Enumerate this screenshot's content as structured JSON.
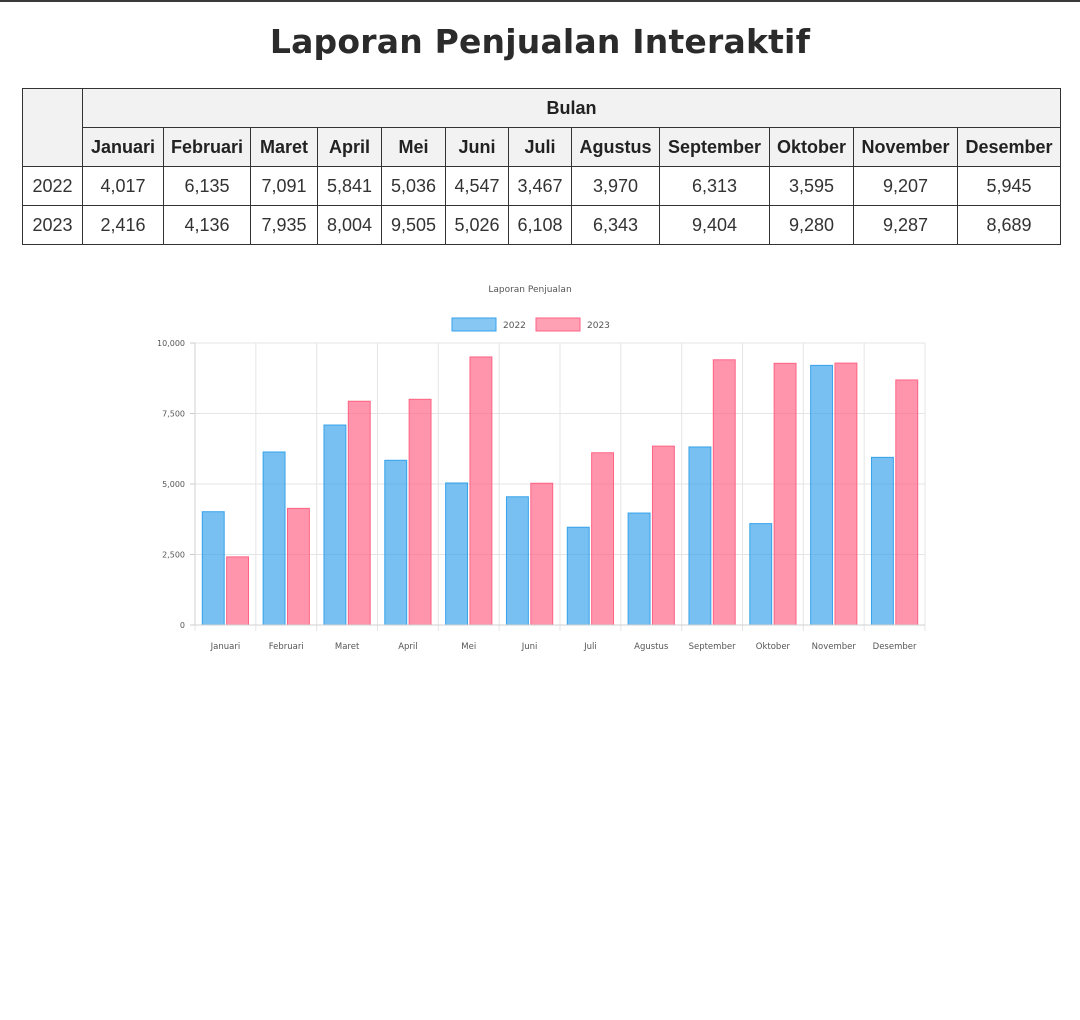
{
  "page": {
    "title": "Laporan Penjualan Interaktif"
  },
  "table": {
    "group_header": "Bulan",
    "months": [
      "Januari",
      "Februari",
      "Maret",
      "April",
      "Mei",
      "Juni",
      "Juli",
      "Agustus",
      "September",
      "Oktober",
      "November",
      "Desember"
    ],
    "rows": [
      {
        "year": "2022",
        "cells": [
          "4,017",
          "6,135",
          "7,091",
          "5,841",
          "5,036",
          "4,547",
          "3,467",
          "3,970",
          "6,313",
          "3,595",
          "9,207",
          "5,945"
        ]
      },
      {
        "year": "2023",
        "cells": [
          "2,416",
          "4,136",
          "7,935",
          "8,004",
          "9,505",
          "5,026",
          "6,108",
          "6,343",
          "9,404",
          "9,280",
          "9,287",
          "8,689"
        ]
      }
    ]
  },
  "chart_data": {
    "type": "bar",
    "title": "Laporan Penjualan",
    "categories": [
      "Januari",
      "Februari",
      "Maret",
      "April",
      "Mei",
      "Juni",
      "Juli",
      "Agustus",
      "September",
      "Oktober",
      "November",
      "Desember"
    ],
    "series": [
      {
        "name": "2022",
        "values": [
          4017,
          6135,
          7091,
          5841,
          5036,
          4547,
          3467,
          3970,
          6313,
          3595,
          9207,
          5945
        ],
        "color": "#36A2EB"
      },
      {
        "name": "2023",
        "values": [
          2416,
          4136,
          7935,
          8004,
          9505,
          5026,
          6108,
          6343,
          9404,
          9280,
          9287,
          8689
        ],
        "color": "#FF6384"
      }
    ],
    "ylim": [
      0,
      10000
    ],
    "yticks": [
      0,
      2500,
      5000,
      7500,
      10000
    ],
    "ytick_labels": [
      "0",
      "2,500",
      "5,000",
      "7,500",
      "10,000"
    ],
    "legend_position": "top",
    "grid": true
  }
}
